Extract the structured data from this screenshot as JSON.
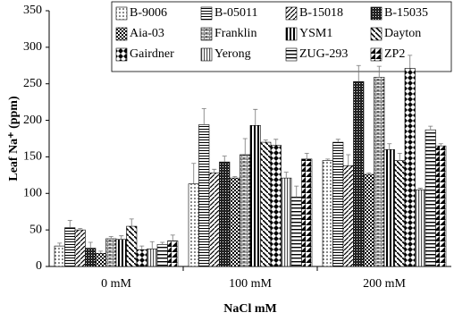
{
  "chart_data": {
    "type": "bar",
    "y_label": "Leaf Na⁺ (ppm)",
    "x_label": "NaCl mM",
    "categories": [
      "0 mM",
      "100 mM",
      "200 mM"
    ],
    "ylim": [
      0,
      350
    ],
    "yticks": [
      0,
      50,
      100,
      150,
      200,
      250,
      300,
      350
    ],
    "series": [
      {
        "name": "B-9006",
        "color": "#000000",
        "pattern": "dots",
        "values": [
          28,
          113,
          145
        ],
        "errors": [
          4,
          28,
          2
        ]
      },
      {
        "name": "B-05011",
        "color": "#000000",
        "pattern": "hlines",
        "values": [
          53,
          194,
          170
        ],
        "errors": [
          10,
          22,
          4
        ]
      },
      {
        "name": "B-15018",
        "color": "#000000",
        "pattern": "diag",
        "values": [
          50,
          128,
          138
        ],
        "errors": [
          2,
          5,
          15
        ]
      },
      {
        "name": "B-15035",
        "color": "#000000",
        "pattern": "dense",
        "values": [
          25,
          143,
          253
        ],
        "errors": [
          8,
          8,
          22
        ]
      },
      {
        "name": "Aia-03",
        "color": "#000000",
        "pattern": "checks",
        "values": [
          18,
          121,
          126
        ],
        "errors": [
          3,
          2,
          2
        ]
      },
      {
        "name": "Franklin",
        "color": "#000000",
        "pattern": "bricks",
        "values": [
          38,
          153,
          259
        ],
        "errors": [
          3,
          22,
          15
        ]
      },
      {
        "name": "YSM1",
        "color": "#000000",
        "pattern": "halfv",
        "values": [
          37,
          193,
          160
        ],
        "errors": [
          5,
          22,
          8
        ]
      },
      {
        "name": "Dayton",
        "color": "#000000",
        "pattern": "wide",
        "values": [
          55,
          170,
          145
        ],
        "errors": [
          10,
          3,
          10
        ]
      },
      {
        "name": "Gairdner",
        "color": "#000000",
        "pattern": "diamond",
        "values": [
          23,
          166,
          271
        ],
        "errors": [
          5,
          8,
          18
        ]
      },
      {
        "name": "Yerong",
        "color": "#000000",
        "pattern": "vlines",
        "values": [
          24,
          121,
          105
        ],
        "errors": [
          10,
          8,
          2
        ]
      },
      {
        "name": "ZUG-293",
        "color": "#000000",
        "pattern": "hlines2",
        "values": [
          30,
          95,
          187
        ],
        "errors": [
          3,
          15,
          5
        ]
      },
      {
        "name": "ZP2",
        "color": "#000000",
        "pattern": "halfh",
        "values": [
          35,
          147,
          165
        ],
        "errors": [
          8,
          8,
          3
        ]
      }
    ]
  }
}
